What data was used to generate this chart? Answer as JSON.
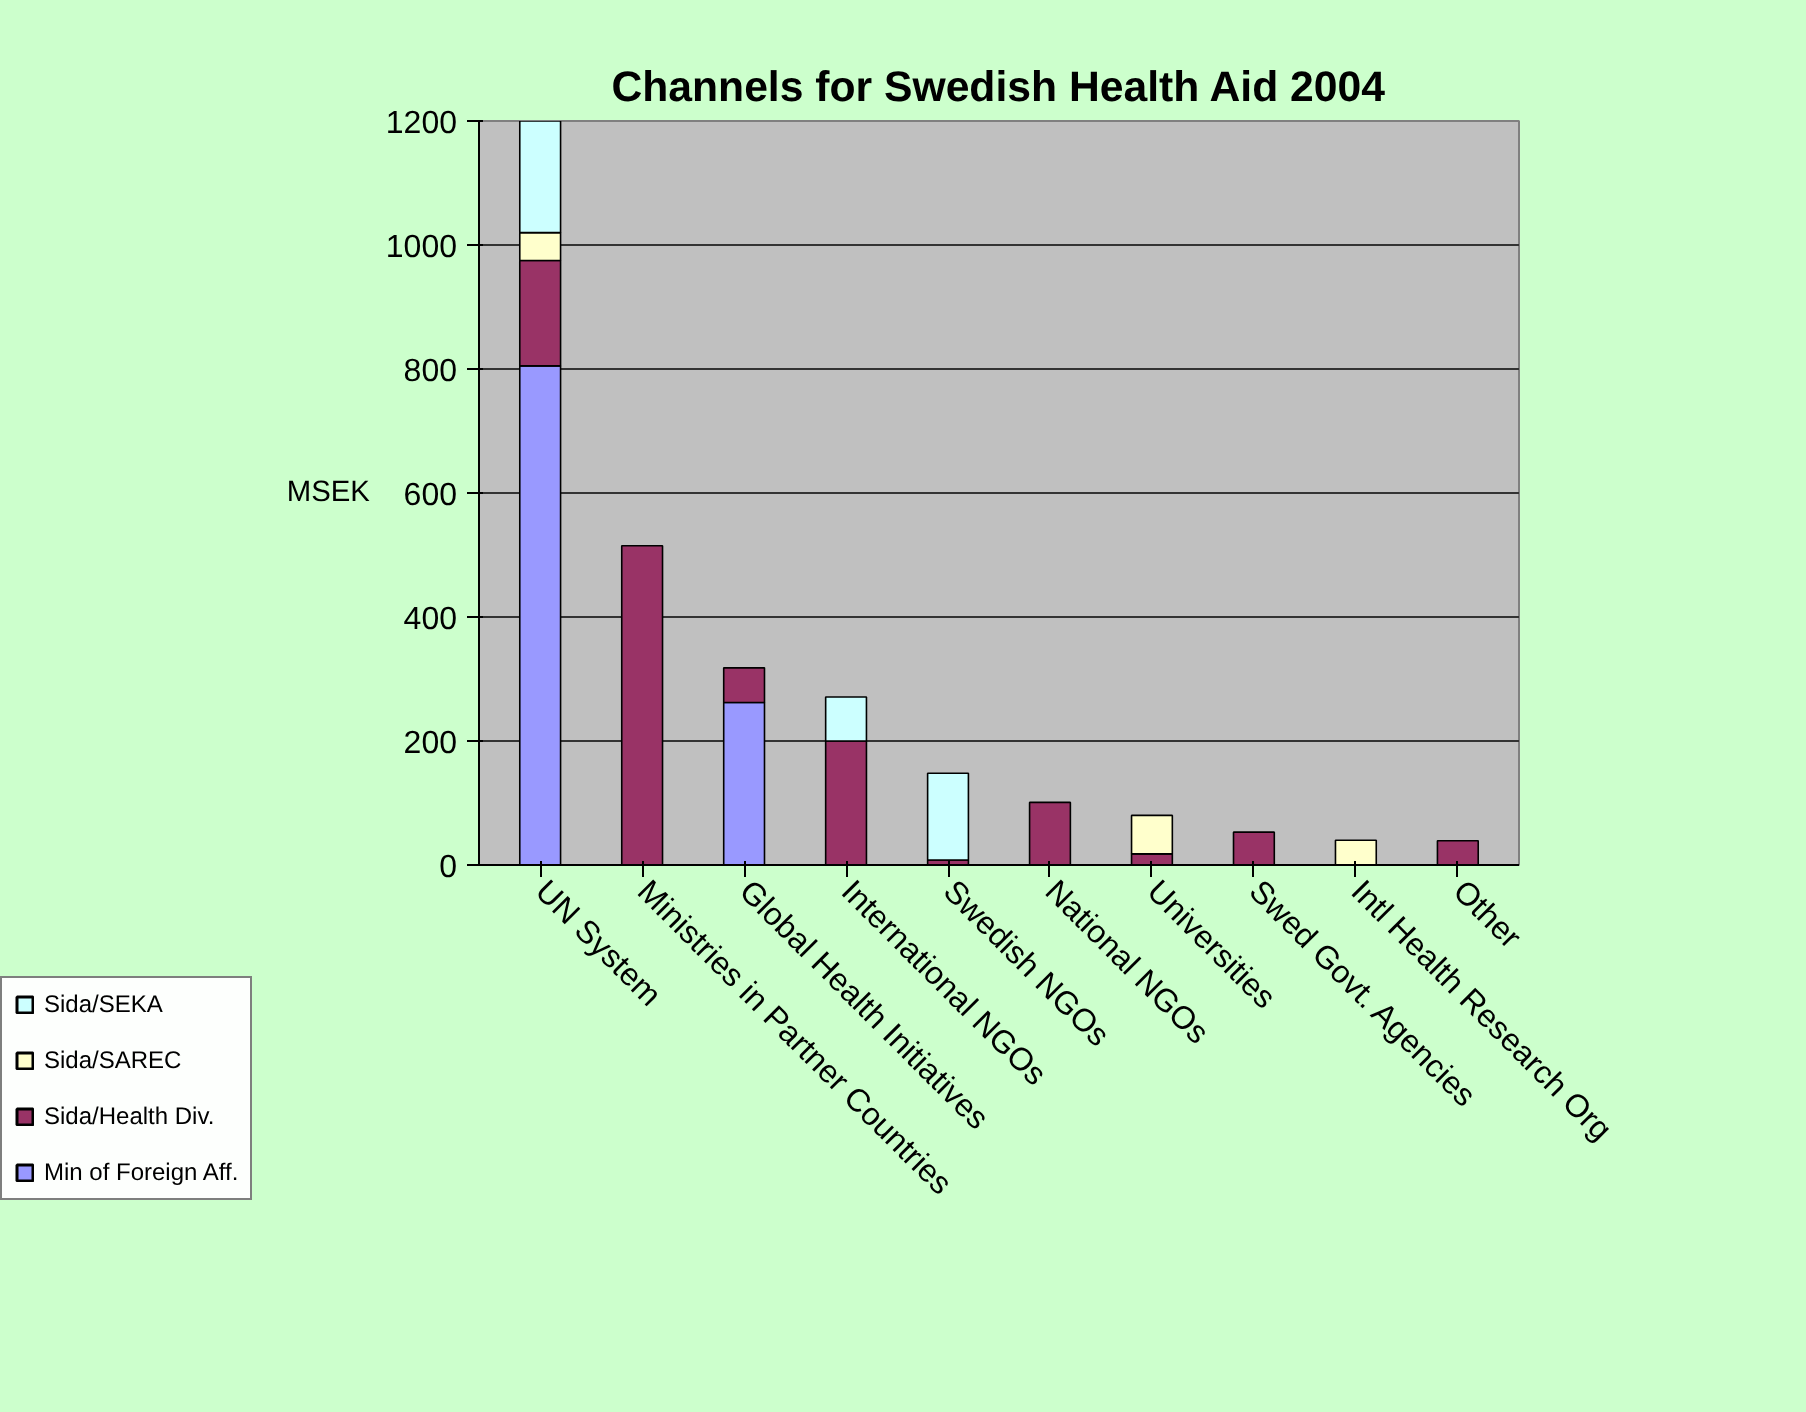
{
  "chart_data": {
    "type": "bar",
    "title": "Channels for Swedish Health Aid 2004",
    "ylabel": "MSEK",
    "categories": [
      "UN System",
      "Ministries in Partner Countries",
      "Global Health Initiatives",
      "International NGOs",
      "Swedish NGOs",
      "National NGOs",
      "Universities",
      "Swed Govt. Agencies",
      "Intl Health Research Org",
      "Other"
    ],
    "stacked": true,
    "series": [
      {
        "name": "Min of Foreign Aff.",
        "color": "#9999ff",
        "values": [
          805,
          0,
          262,
          0,
          0,
          0,
          0,
          0,
          0,
          0
        ]
      },
      {
        "name": "Sida/Health Div.",
        "color": "#993366",
        "values": [
          170,
          515,
          56,
          200,
          8,
          101,
          18,
          53,
          0,
          39
        ]
      },
      {
        "name": "Sida/SAREC",
        "color": "#ffffcc",
        "values": [
          45,
          0,
          0,
          0,
          0,
          0,
          62,
          0,
          40,
          0
        ]
      },
      {
        "name": "Sida/SEKA",
        "color": "#ccffff",
        "values": [
          180,
          0,
          0,
          71,
          140,
          0,
          0,
          0,
          0,
          0
        ]
      }
    ],
    "ylim": [
      0,
      1200
    ],
    "yticks": [
      0,
      200,
      400,
      600,
      800,
      1000,
      1200
    ],
    "grid": "y",
    "legend": "bottom left"
  }
}
